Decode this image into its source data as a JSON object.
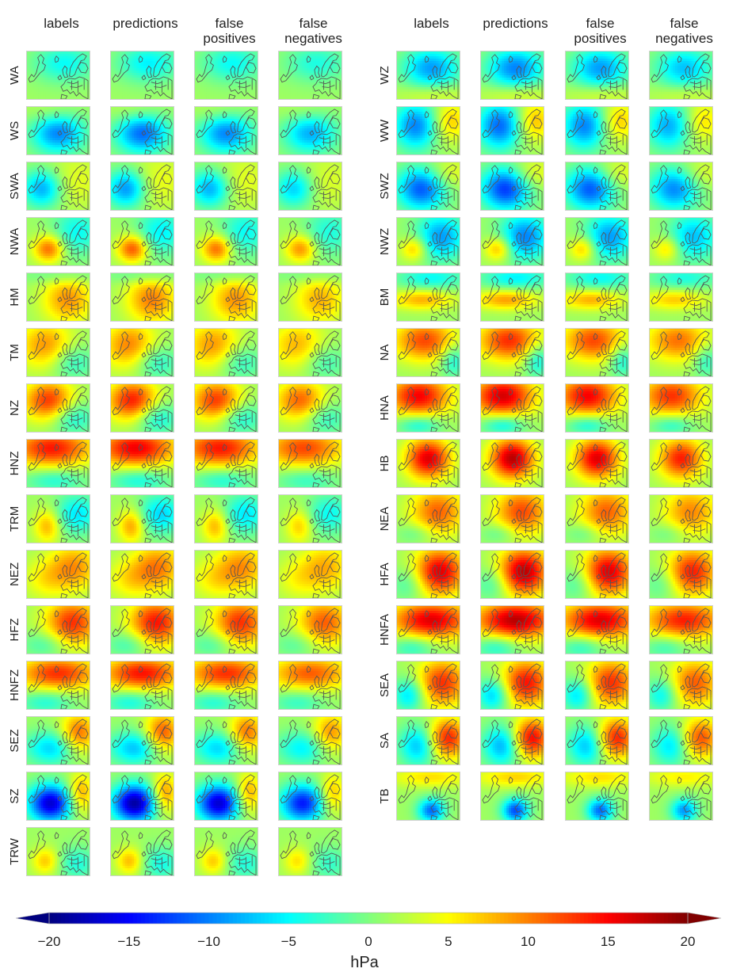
{
  "column_headers": [
    [
      "labels"
    ],
    [
      "predictions"
    ],
    [
      "false",
      "positives"
    ],
    [
      "false",
      "negatives"
    ]
  ],
  "chart_data": {
    "type": "heatmap",
    "description_unit": "hPa",
    "colorbar": {
      "label": "hPa",
      "range": [
        -20,
        20
      ],
      "ticks": [
        -20,
        -15,
        -10,
        -5,
        0,
        5,
        10,
        15,
        20
      ],
      "extend": "both",
      "colormap": "jet"
    },
    "panel_columns": [
      "labels",
      "predictions",
      "false positives",
      "false negatives"
    ],
    "left_rows": [
      "WA",
      "WS",
      "SWA",
      "NWA",
      "HM",
      "TM",
      "NZ",
      "HNZ",
      "TRM",
      "NEZ",
      "HFZ",
      "HNFZ",
      "SEZ",
      "SZ",
      "TRW"
    ],
    "right_rows": [
      "WZ",
      "WW",
      "SWZ",
      "NWZ",
      "BM",
      "NA",
      "HNA",
      "HB",
      "NEA",
      "HFA",
      "HNFA",
      "SEA",
      "SA",
      "TB"
    ],
    "patterns": {
      "WA": [
        {
          "x": 0.6,
          "y": 0.25,
          "sx": 0.35,
          "sy": 0.28,
          "a": -6
        }
      ],
      "WS": [
        {
          "x": 0.5,
          "y": 0.55,
          "sx": 0.3,
          "sy": 0.3,
          "a": -11
        },
        {
          "x": 0.4,
          "y": 0.1,
          "sx": 0.3,
          "sy": 0.2,
          "a": 2
        }
      ],
      "SWA": [
        {
          "x": 0.25,
          "y": 0.55,
          "sx": 0.22,
          "sy": 0.28,
          "a": -10
        },
        {
          "x": 0.75,
          "y": 0.4,
          "sx": 0.35,
          "sy": 0.4,
          "a": 3
        }
      ],
      "NWA": [
        {
          "x": 0.35,
          "y": 0.65,
          "sx": 0.17,
          "sy": 0.2,
          "a": 10
        },
        {
          "x": 0.8,
          "y": 0.3,
          "sx": 0.28,
          "sy": 0.35,
          "a": -6
        }
      ],
      "HM": [
        {
          "x": 0.65,
          "y": 0.55,
          "sx": 0.28,
          "sy": 0.35,
          "a": 8
        },
        {
          "x": 0.6,
          "y": 0.05,
          "sx": 0.45,
          "sy": 0.12,
          "a": -3
        }
      ],
      "TM": [
        {
          "x": 0.3,
          "y": 0.35,
          "sx": 0.3,
          "sy": 0.35,
          "a": 8
        },
        {
          "x": 0.72,
          "y": 0.7,
          "sx": 0.25,
          "sy": 0.25,
          "a": -5
        }
      ],
      "NZ": [
        {
          "x": 0.35,
          "y": 0.35,
          "sx": 0.28,
          "sy": 0.3,
          "a": 12
        },
        {
          "x": 0.72,
          "y": 0.7,
          "sx": 0.25,
          "sy": 0.25,
          "a": -6
        }
      ],
      "HNZ": [
        {
          "x": 0.4,
          "y": 0.18,
          "sx": 0.45,
          "sy": 0.28,
          "a": 13
        },
        {
          "x": 0.45,
          "y": 0.85,
          "sx": 0.35,
          "sy": 0.18,
          "a": -5
        }
      ],
      "TRM": [
        {
          "x": 0.33,
          "y": 0.65,
          "sx": 0.15,
          "sy": 0.25,
          "a": 7
        },
        {
          "x": 0.8,
          "y": 0.4,
          "sx": 0.25,
          "sy": 0.3,
          "a": -7
        }
      ],
      "NEZ": [
        {
          "x": 0.75,
          "y": 0.35,
          "sx": 0.28,
          "sy": 0.35,
          "a": 8
        },
        {
          "x": 0.3,
          "y": 0.6,
          "sx": 0.25,
          "sy": 0.3,
          "a": 4
        }
      ],
      "HFZ": [
        {
          "x": 0.72,
          "y": 0.35,
          "sx": 0.3,
          "sy": 0.35,
          "a": 12
        },
        {
          "x": 0.3,
          "y": 0.8,
          "sx": 0.25,
          "sy": 0.2,
          "a": -4
        }
      ],
      "HNFZ": [
        {
          "x": 0.5,
          "y": 0.25,
          "sx": 0.45,
          "sy": 0.25,
          "a": 12
        },
        {
          "x": 0.3,
          "y": 0.85,
          "sx": 0.3,
          "sy": 0.18,
          "a": -5
        }
      ],
      "SEZ": [
        {
          "x": 0.4,
          "y": 0.65,
          "sx": 0.3,
          "sy": 0.25,
          "a": -8
        },
        {
          "x": 0.82,
          "y": 0.35,
          "sx": 0.2,
          "sy": 0.3,
          "a": 10
        }
      ],
      "SZ": [
        {
          "x": 0.38,
          "y": 0.65,
          "sx": 0.25,
          "sy": 0.28,
          "a": -18
        },
        {
          "x": 0.85,
          "y": 0.45,
          "sx": 0.15,
          "sy": 0.3,
          "a": 8
        }
      ],
      "TRW": [
        {
          "x": 0.3,
          "y": 0.7,
          "sx": 0.15,
          "sy": 0.2,
          "a": 6
        },
        {
          "x": 0.8,
          "y": 0.75,
          "sx": 0.22,
          "sy": 0.25,
          "a": -5
        }
      ],
      "WZ": [
        {
          "x": 0.55,
          "y": 0.35,
          "sx": 0.32,
          "sy": 0.3,
          "a": -10
        },
        {
          "x": 0.6,
          "y": 0.9,
          "sx": 0.4,
          "sy": 0.15,
          "a": 3
        }
      ],
      "WW": [
        {
          "x": 0.3,
          "y": 0.4,
          "sx": 0.25,
          "sy": 0.35,
          "a": -11
        },
        {
          "x": 0.85,
          "y": 0.3,
          "sx": 0.2,
          "sy": 0.3,
          "a": 6
        }
      ],
      "SWZ": [
        {
          "x": 0.4,
          "y": 0.55,
          "sx": 0.28,
          "sy": 0.32,
          "a": -13
        },
        {
          "x": 0.8,
          "y": 0.25,
          "sx": 0.25,
          "sy": 0.25,
          "a": 4
        }
      ],
      "NWZ": [
        {
          "x": 0.28,
          "y": 0.65,
          "sx": 0.15,
          "sy": 0.18,
          "a": 7
        },
        {
          "x": 0.7,
          "y": 0.4,
          "sx": 0.28,
          "sy": 0.35,
          "a": -10
        }
      ],
      "BM": [
        {
          "x": 0.55,
          "y": 0.1,
          "sx": 0.4,
          "sy": 0.18,
          "a": -6
        },
        {
          "x": 0.4,
          "y": 0.55,
          "sx": 0.35,
          "sy": 0.15,
          "a": 7
        }
      ],
      "NA": [
        {
          "x": 0.45,
          "y": 0.25,
          "sx": 0.35,
          "sy": 0.3,
          "a": 11
        },
        {
          "x": 0.9,
          "y": 0.65,
          "sx": 0.15,
          "sy": 0.25,
          "a": -6
        }
      ],
      "HNA": [
        {
          "x": 0.35,
          "y": 0.25,
          "sx": 0.35,
          "sy": 0.3,
          "a": 14
        },
        {
          "x": 0.35,
          "y": 0.85,
          "sx": 0.25,
          "sy": 0.15,
          "a": -6
        }
      ],
      "HB": [
        {
          "x": 0.5,
          "y": 0.4,
          "sx": 0.25,
          "sy": 0.3,
          "a": 15
        }
      ],
      "NEA": [
        {
          "x": 0.65,
          "y": 0.35,
          "sx": 0.3,
          "sy": 0.35,
          "a": 10
        },
        {
          "x": 0.3,
          "y": 0.8,
          "sx": 0.2,
          "sy": 0.15,
          "a": -3
        }
      ],
      "HFA": [
        {
          "x": 0.68,
          "y": 0.45,
          "sx": 0.28,
          "sy": 0.35,
          "a": 15
        },
        {
          "x": 0.2,
          "y": 0.7,
          "sx": 0.2,
          "sy": 0.25,
          "a": -4
        }
      ],
      "HNFA": [
        {
          "x": 0.55,
          "y": 0.3,
          "sx": 0.45,
          "sy": 0.28,
          "a": 15
        },
        {
          "x": 0.25,
          "y": 0.85,
          "sx": 0.25,
          "sy": 0.18,
          "a": -5
        }
      ],
      "SEA": [
        {
          "x": 0.72,
          "y": 0.45,
          "sx": 0.28,
          "sy": 0.35,
          "a": 12
        },
        {
          "x": 0.2,
          "y": 0.7,
          "sx": 0.18,
          "sy": 0.25,
          "a": -8
        }
      ],
      "SA": [
        {
          "x": 0.35,
          "y": 0.6,
          "sx": 0.22,
          "sy": 0.3,
          "a": -9
        },
        {
          "x": 0.8,
          "y": 0.45,
          "sx": 0.22,
          "sy": 0.3,
          "a": 13
        }
      ],
      "TB": [
        {
          "x": 0.55,
          "y": 0.8,
          "sx": 0.15,
          "sy": 0.18,
          "a": -12
        },
        {
          "x": 0.55,
          "y": 0.1,
          "sx": 0.45,
          "sy": 0.15,
          "a": 5
        }
      ]
    },
    "column_scale": [
      1.0,
      1.1,
      1.0,
      0.85
    ]
  }
}
